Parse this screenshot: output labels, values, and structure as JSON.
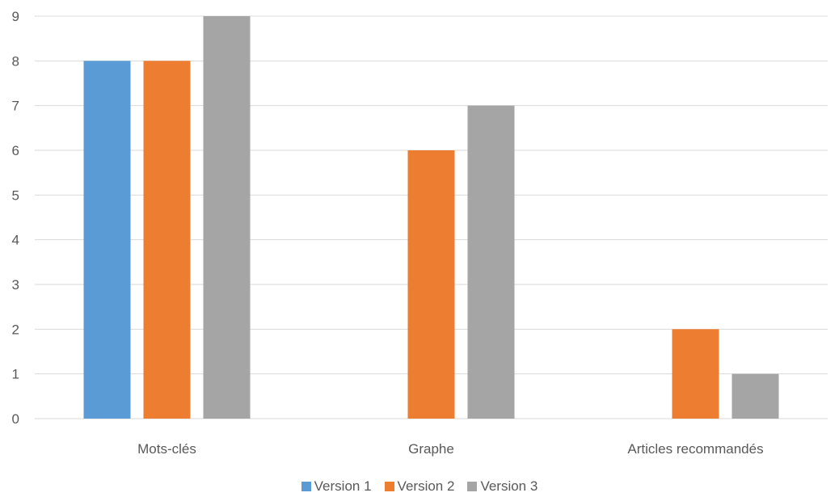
{
  "chart_data": {
    "type": "bar",
    "categories": [
      "Mots-clés",
      "Graphe",
      "Articles recommandés"
    ],
    "series": [
      {
        "name": "Version 1",
        "values": [
          8,
          0,
          0
        ],
        "color": "#5B9BD5"
      },
      {
        "name": "Version 2",
        "values": [
          8,
          6,
          2
        ],
        "color": "#ED7D31"
      },
      {
        "name": "Version 3",
        "values": [
          9,
          7,
          1
        ],
        "color": "#A5A5A5"
      }
    ],
    "ylim": [
      0,
      9
    ],
    "yticks": [
      0,
      1,
      2,
      3,
      4,
      5,
      6,
      7,
      8,
      9
    ],
    "grid": true,
    "legend_position": "bottom"
  }
}
